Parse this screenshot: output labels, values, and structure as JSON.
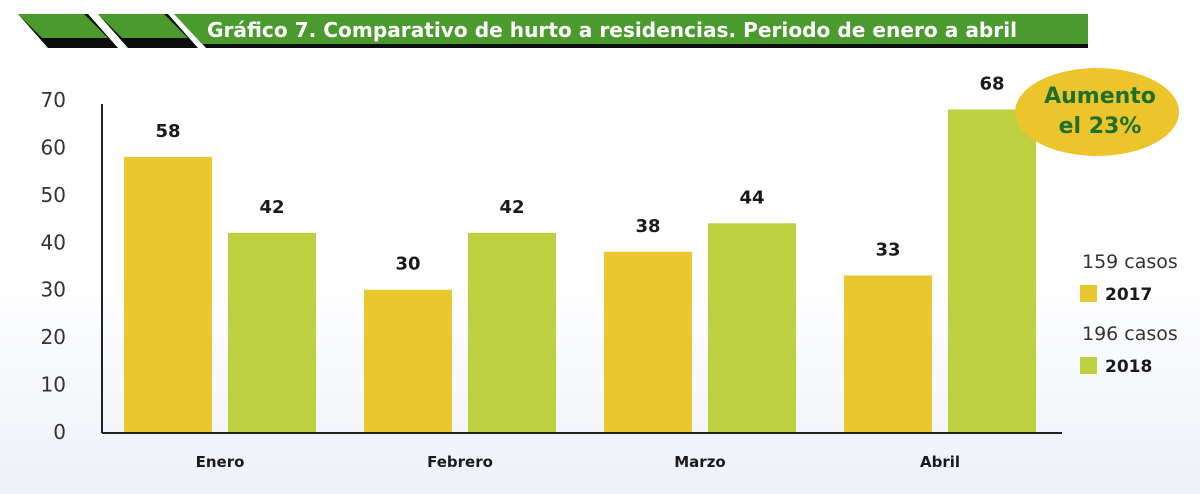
{
  "colors": {
    "series_2017": "#e9c72e",
    "series_2018": "#bdd140",
    "title_banner": "#4a9a2e",
    "title_accent": "#0d0d0d",
    "badge_fill": "#ecc52c",
    "badge_text": "#1f6e2a",
    "axis": "#222222"
  },
  "chart_data": {
    "type": "bar",
    "title": "Gráfico 7. Comparativo de hurto a residencias. Periodo de enero a abril",
    "categories": [
      "Enero",
      "Febrero",
      "Marzo",
      "Abril"
    ],
    "series": [
      {
        "name": "2017",
        "cases_label": "159 casos",
        "values": [
          58,
          30,
          38,
          33
        ],
        "value_labels": [
          "58",
          "30",
          "38",
          "33"
        ]
      },
      {
        "name": "2018",
        "cases_label": "196 casos",
        "values": [
          42,
          42,
          44,
          68
        ],
        "value_labels": [
          "42",
          "42",
          "44",
          "68"
        ]
      }
    ],
    "ylim": [
      0,
      70
    ],
    "yticks": [
      0,
      10,
      20,
      30,
      40,
      50,
      60,
      70
    ],
    "ytick_labels": [
      "0",
      "10",
      "20",
      "30",
      "40",
      "50",
      "60",
      "70"
    ],
    "xlabel": "",
    "ylabel": "",
    "grid": false,
    "legend_position": "right",
    "annotation": {
      "line1": "Aumento",
      "line2": "el 23%"
    }
  }
}
